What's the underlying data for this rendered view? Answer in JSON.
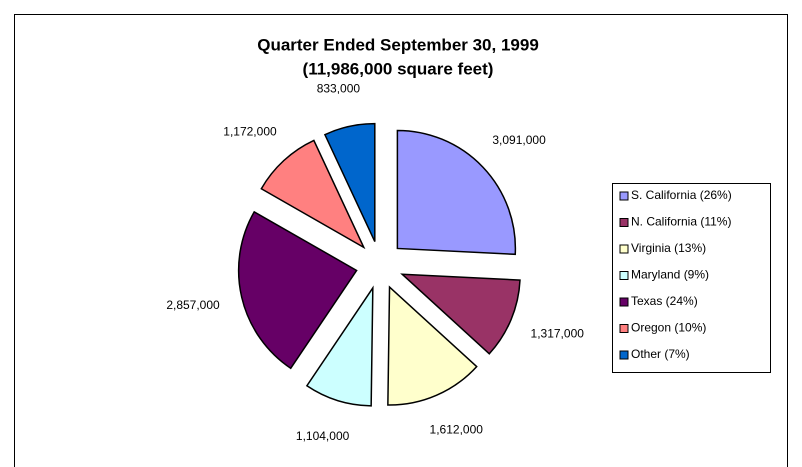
{
  "chart_data": {
    "type": "pie",
    "title": "Quarter Ended September 30, 1999",
    "subtitle": "(11,986,000 square feet)",
    "categories": [
      "S. California (26%)",
      "N. California (11%)",
      "Virginia (13%)",
      "Maryland (9%)",
      "Texas (24%)",
      "Oregon (10%)",
      "Other (7%)"
    ],
    "values": [
      3091000,
      1317000,
      1612000,
      1104000,
      2857000,
      1172000,
      833000
    ],
    "value_labels": [
      "3,091,000",
      "1,317,000",
      "1,612,000",
      "1,104,000",
      "2,857,000",
      "1,172,000",
      "833,000"
    ],
    "colors": [
      "#9999ff",
      "#993366",
      "#ffffcc",
      "#ccffff",
      "#660066",
      "#ff8080",
      "#0066cc"
    ],
    "legend": "right"
  }
}
